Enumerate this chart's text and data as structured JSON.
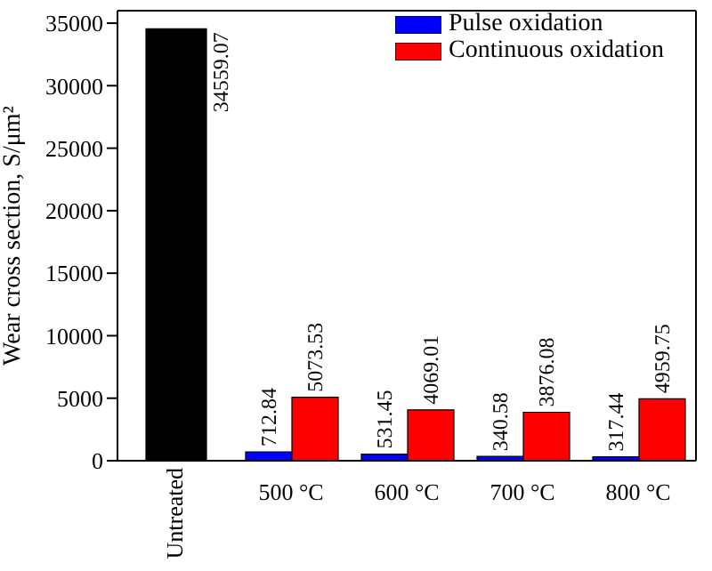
{
  "chart_data": {
    "type": "bar",
    "ylabel": "Wear cross section, S/μm²",
    "categories": [
      "Untreated",
      "500 °C",
      "600 °C",
      "700 °C",
      "800 °C"
    ],
    "series": [
      {
        "color": "#000000",
        "values": [
          34559.07,
          null,
          null,
          null,
          null
        ]
      },
      {
        "name": "Pulse oxidation",
        "color": "#0000ff",
        "values": [
          null,
          712.84,
          531.45,
          340.58,
          317.44
        ]
      },
      {
        "name": "Continuous oxidation",
        "color": "#ff0000",
        "values": [
          null,
          5073.53,
          4069.01,
          3876.08,
          4959.75
        ]
      }
    ],
    "ylim": [
      0,
      36000
    ],
    "yticks": [
      0,
      5000,
      10000,
      15000,
      20000,
      25000,
      30000,
      35000
    ],
    "data_labels": true,
    "legend": "top right"
  }
}
